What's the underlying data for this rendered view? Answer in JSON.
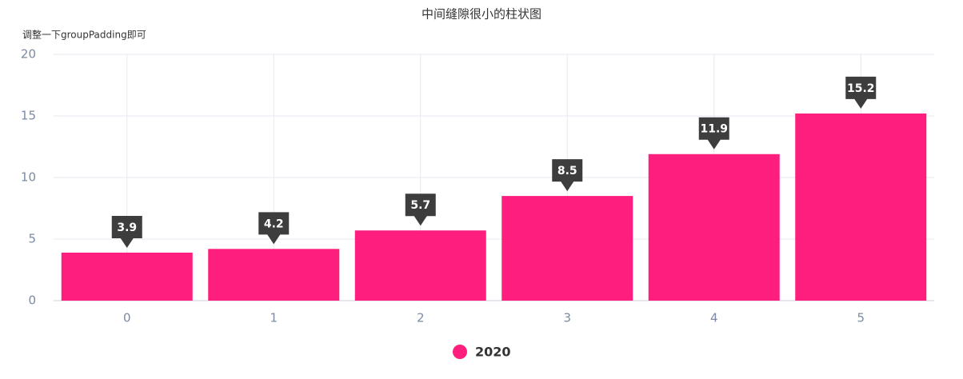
{
  "chart_data": {
    "type": "bar",
    "title": "中间缝隙很小的柱状图",
    "subtitle": "调整一下groupPadding即可",
    "categories": [
      "0",
      "1",
      "2",
      "3",
      "4",
      "5"
    ],
    "series": [
      {
        "name": "2020",
        "color": "#fe1e7d",
        "values": [
          3.9,
          4.2,
          5.7,
          8.5,
          11.9,
          15.2
        ]
      }
    ],
    "ylim": [
      0,
      20
    ],
    "yticks": [
      0,
      5,
      10,
      15,
      20
    ],
    "grid": true
  }
}
